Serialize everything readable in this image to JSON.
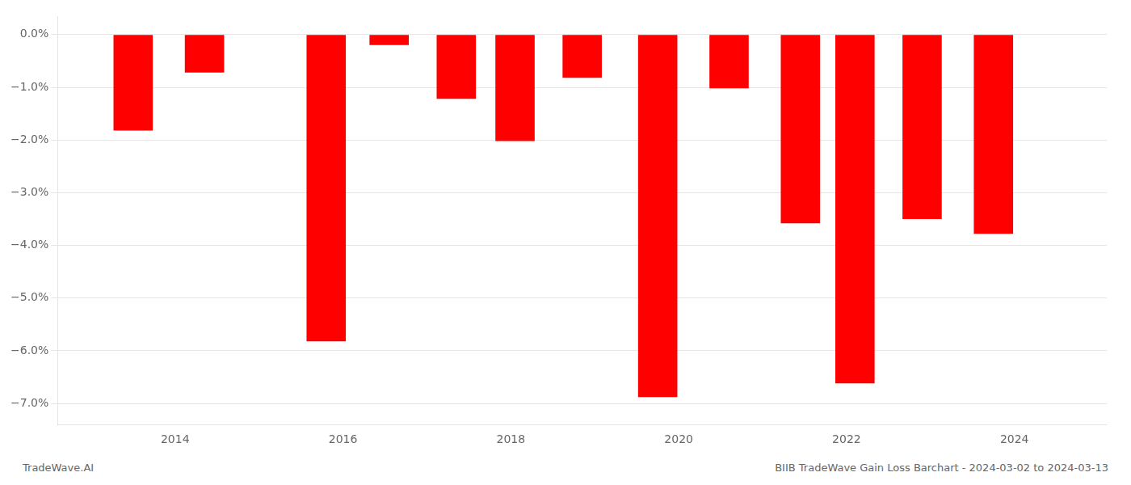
{
  "chart_data": {
    "type": "bar",
    "x": [
      2013.5,
      2014.35,
      2015.8,
      2016.55,
      2017.35,
      2018.05,
      2018.85,
      2019.75,
      2020.6,
      2021.45,
      2022.1,
      2022.9,
      2023.75
    ],
    "values": [
      -1.82,
      -0.72,
      -5.82,
      -0.2,
      -1.22,
      -2.02,
      -0.82,
      -6.88,
      -1.02,
      -3.58,
      -6.62,
      -3.5,
      -3.78
    ],
    "color": "#ff0000",
    "xlim": [
      2012.6,
      2025.1
    ],
    "xticks": [
      2014,
      2016,
      2018,
      2020,
      2022,
      2024
    ],
    "ylim": [
      -7.4,
      0.35
    ],
    "yticks": [
      {
        "value": 0.0,
        "label": "0.0%"
      },
      {
        "value": -1.0,
        "label": "−1.0%"
      },
      {
        "value": -2.0,
        "label": "−2.0%"
      },
      {
        "value": -3.0,
        "label": "−3.0%"
      },
      {
        "value": -4.0,
        "label": "−4.0%"
      },
      {
        "value": -5.0,
        "label": "−5.0%"
      },
      {
        "value": -6.0,
        "label": "−6.0%"
      },
      {
        "value": -7.0,
        "label": "−7.0%"
      }
    ],
    "grid": true,
    "annotations": [
      "TradeWave.AI",
      "BIIB TradeWave Gain Loss Barchart - 2024-03-02 to 2024-03-13"
    ]
  }
}
